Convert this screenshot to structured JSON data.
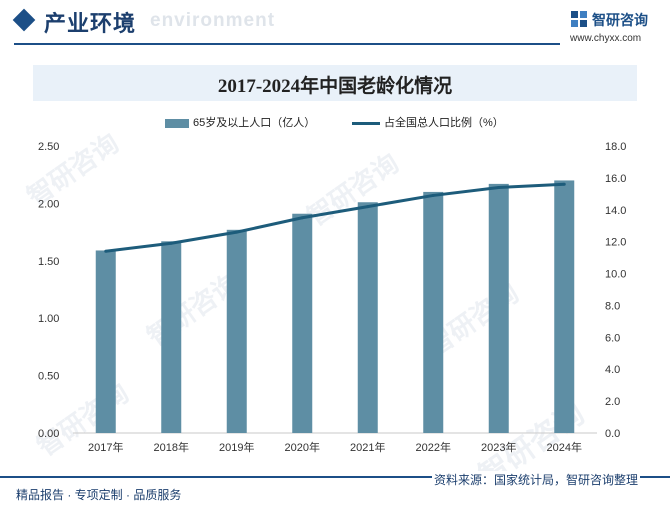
{
  "header": {
    "section_title": "产业环境",
    "watermark": "environment",
    "brand_name": "智研咨询",
    "brand_url": "www.chyxx.com"
  },
  "footer": {
    "left": "精品报告 · 专项定制 · 品质服务",
    "source": "资料来源：国家统计局，智研咨询整理"
  },
  "watermark_text": "智研咨询",
  "colors": {
    "bar": "#5e8ea4",
    "line": "#1d5c7b",
    "brand": "#1c4f87"
  },
  "chart_data": {
    "type": "bar",
    "title": "2017-2024年中国老龄化情况",
    "categories": [
      "2017年",
      "2018年",
      "2019年",
      "2020年",
      "2021年",
      "2022年",
      "2023年",
      "2024年"
    ],
    "series": [
      {
        "name": "65岁及以上人口（亿人）",
        "type": "bar",
        "axis": "left",
        "values": [
          1.59,
          1.67,
          1.77,
          1.91,
          2.01,
          2.1,
          2.17,
          2.2
        ]
      },
      {
        "name": "占全国总人口比例（%）",
        "type": "line",
        "axis": "right",
        "values": [
          11.4,
          11.9,
          12.6,
          13.5,
          14.2,
          14.9,
          15.4,
          15.6
        ]
      }
    ],
    "y_left": {
      "min": 0,
      "max": 2.5,
      "ticks": [
        "0.00",
        "0.50",
        "1.00",
        "1.50",
        "2.00",
        "2.50"
      ]
    },
    "y_right": {
      "min": 0,
      "max": 18,
      "ticks": [
        "0.0",
        "2.0",
        "4.0",
        "6.0",
        "8.0",
        "10.0",
        "12.0",
        "14.0",
        "16.0",
        "18.0"
      ]
    },
    "legend_position": "top",
    "grid": false
  }
}
